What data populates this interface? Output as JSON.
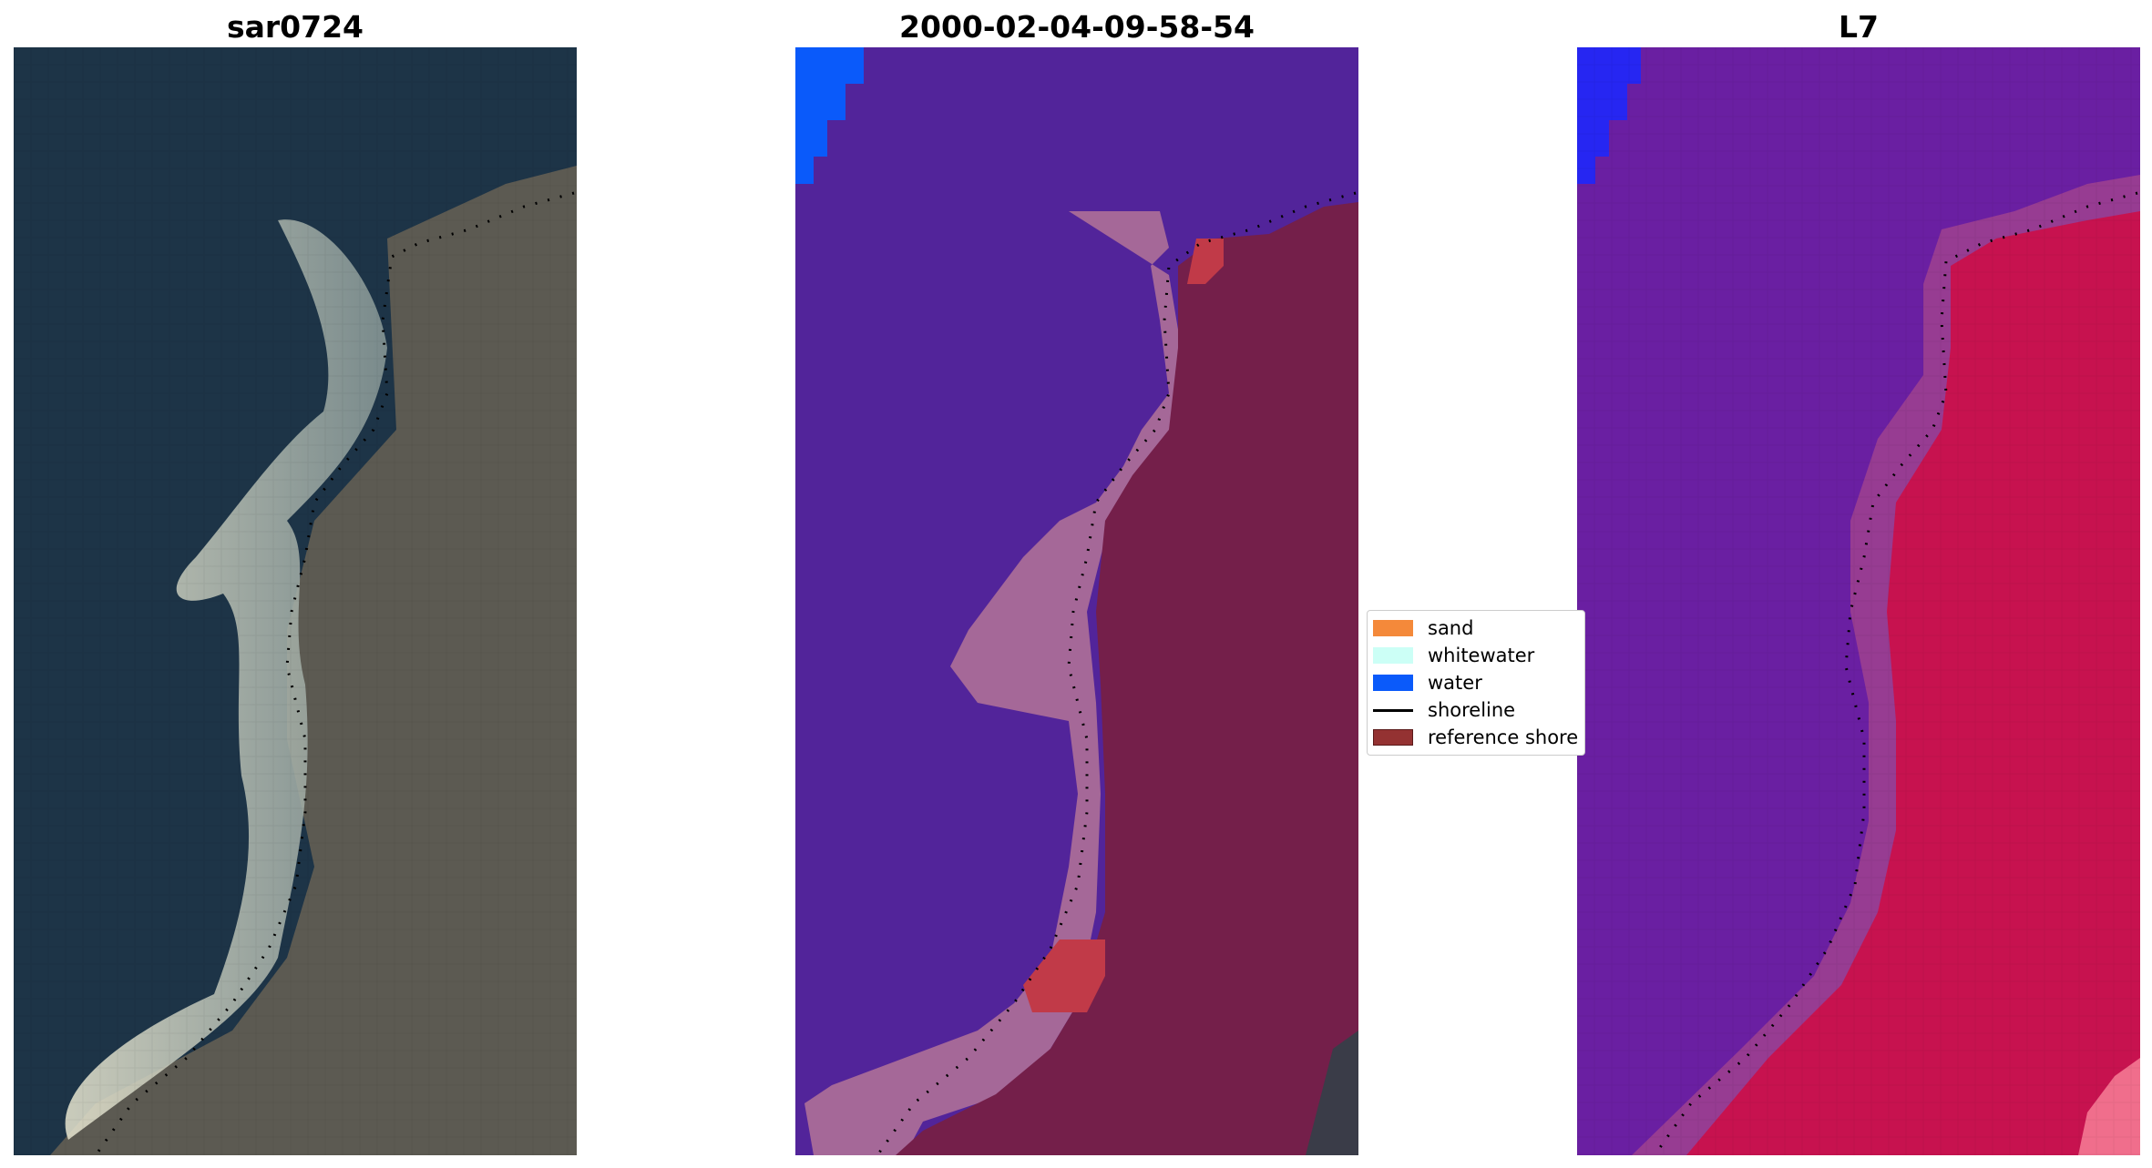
{
  "panels": [
    {
      "title": "sar0724"
    },
    {
      "title": "2000-02-04-09-58-54"
    },
    {
      "title": "L7"
    }
  ],
  "legend": {
    "items": [
      {
        "label": "sand",
        "color": "#f4893a",
        "kind": "patch"
      },
      {
        "label": "whitewater",
        "color": "#ccfff6",
        "kind": "patch"
      },
      {
        "label": "water",
        "color": "#0a5afa",
        "kind": "patch"
      },
      {
        "label": "shoreline",
        "color": "#000000",
        "kind": "line"
      },
      {
        "label": "reference shore",
        "color": "#943232",
        "kind": "patch"
      }
    ]
  },
  "colors": {
    "rgb_water": "#1d3447",
    "rgb_land": "#5c5a52",
    "class_water": "#52249a",
    "class_sand_overlay": "#a56898",
    "class_land": "#741f4a",
    "class_water_corner": "#0a5afa",
    "l7_sea": "#6a1fa2",
    "l7_land": "#c7124f",
    "l7_corner": "#2626f2"
  }
}
